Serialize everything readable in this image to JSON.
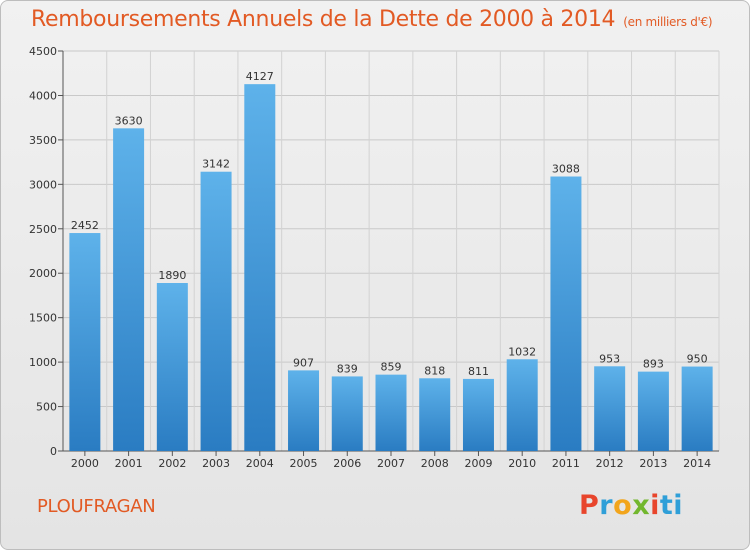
{
  "header": {
    "title": "Remboursements Annuels de la Dette de 2000 à 2014",
    "subtitle": "(en milliers d'€)"
  },
  "footer": {
    "city": "PLOUFRAGAN",
    "logo": [
      "P",
      "r",
      "o",
      "x",
      "i",
      "ti"
    ]
  },
  "colors": {
    "title": "#e25a24",
    "bar_top": "#5eb2ea",
    "bar_bottom": "#2a7cc2"
  },
  "chart_data": {
    "type": "bar",
    "title": "Remboursements Annuels de la Dette de 2000 à 2014",
    "xlabel": "",
    "ylabel": "",
    "categories": [
      "2000",
      "2001",
      "2002",
      "2003",
      "2004",
      "2005",
      "2006",
      "2007",
      "2008",
      "2009",
      "2010",
      "2011",
      "2012",
      "2013",
      "2014"
    ],
    "values": [
      2452,
      3630,
      1890,
      3142,
      4127,
      907,
      839,
      859,
      818,
      811,
      1032,
      3088,
      953,
      893,
      950
    ],
    "ylim": [
      0,
      4500
    ],
    "yticks": [
      0,
      500,
      1000,
      1500,
      2000,
      2500,
      3000,
      3500,
      4000,
      4500
    ],
    "grid": true
  }
}
